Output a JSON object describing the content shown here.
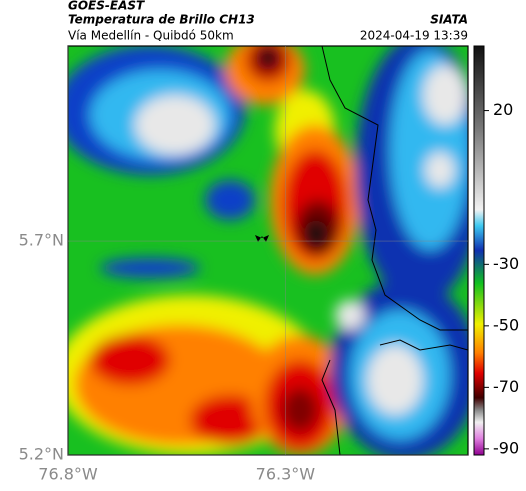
{
  "header": {
    "title": "GOES-EAST",
    "subtitle": "Temperatura de Brillo CH13",
    "region": "Vía Medellín - Quibdó 50km",
    "source": "SIATA",
    "timestamp": "2024-04-19 13:39"
  },
  "map": {
    "xlim": [
      -76.8,
      -75.88
    ],
    "ylim": [
      5.2,
      6.156
    ],
    "xticks": [
      {
        "value": -76.8,
        "label": "76.8°W"
      },
      {
        "value": -76.3,
        "label": "76.3°W"
      }
    ],
    "yticks": [
      {
        "value": 5.2,
        "label": "5.2°N"
      },
      {
        "value": 5.7,
        "label": "5.7°N"
      }
    ]
  },
  "colorbar": {
    "clim": [
      -92,
      41
    ],
    "ticks": [
      20,
      -30,
      -50,
      -70,
      -90
    ]
  }
}
